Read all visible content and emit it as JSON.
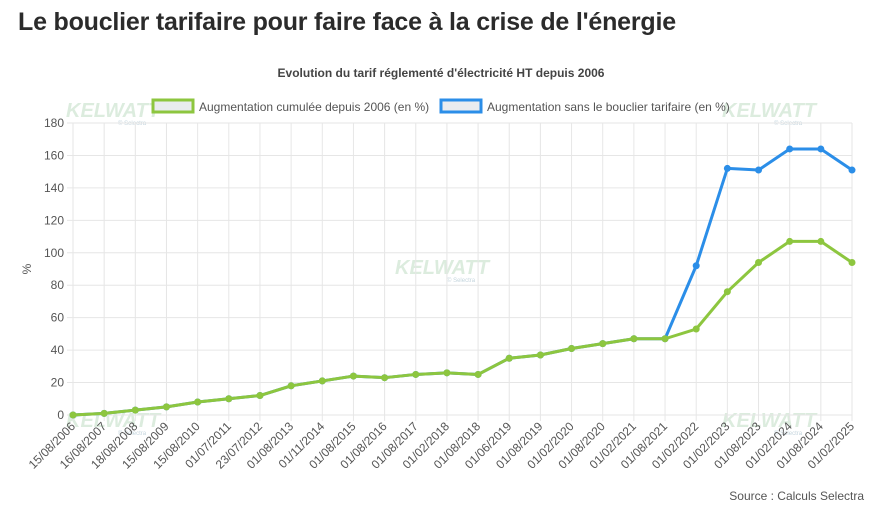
{
  "page": {
    "title": "Le bouclier tarifaire pour faire face à la crise de l'énergie",
    "source": "Source : Calculs Selectra"
  },
  "watermark": {
    "brand": "KELWATT",
    "sub": "© Selectra"
  },
  "chart_data": {
    "type": "line",
    "title": "Evolution du tarif réglementé d'électricité HT depuis 2006",
    "ylabel": "%",
    "xlabel": "",
    "ylim": [
      0,
      180
    ],
    "yticks": [
      0,
      20,
      40,
      60,
      80,
      100,
      120,
      140,
      160,
      180
    ],
    "grid": true,
    "legend_position": "top",
    "categories": [
      "15/08/2006",
      "16/08/2007",
      "18/08/2008",
      "15/08/2009",
      "15/08/2010",
      "01/07/2011",
      "23/07/2012",
      "01/08/2013",
      "01/11/2014",
      "01/08/2015",
      "01/08/2016",
      "01/08/2017",
      "01/02/2018",
      "01/08/2018",
      "01/06/2019",
      "01/08/2019",
      "01/02/2020",
      "01/08/2020",
      "01/02/2021",
      "01/08/2021",
      "01/02/2022",
      "01/02/2023",
      "01/08/2023",
      "01/02/2024",
      "01/08/2024",
      "01/02/2025"
    ],
    "series": [
      {
        "name": "Augmentation cumulée depuis 2006 (en %)",
        "color": "#8dc63f",
        "values": [
          0,
          1,
          3,
          5,
          8,
          10,
          12,
          18,
          21,
          24,
          23,
          25,
          26,
          25,
          35,
          37,
          41,
          44,
          47,
          47,
          53,
          76,
          94,
          107,
          107,
          94
        ]
      },
      {
        "name": "Augmentation sans le bouclier tarifaire (en %)",
        "color": "#2b8ee8",
        "values": [
          0,
          1,
          3,
          5,
          8,
          10,
          12,
          18,
          21,
          24,
          23,
          25,
          26,
          25,
          35,
          37,
          41,
          44,
          47,
          47,
          92,
          152,
          151,
          164,
          164,
          151
        ]
      }
    ]
  }
}
